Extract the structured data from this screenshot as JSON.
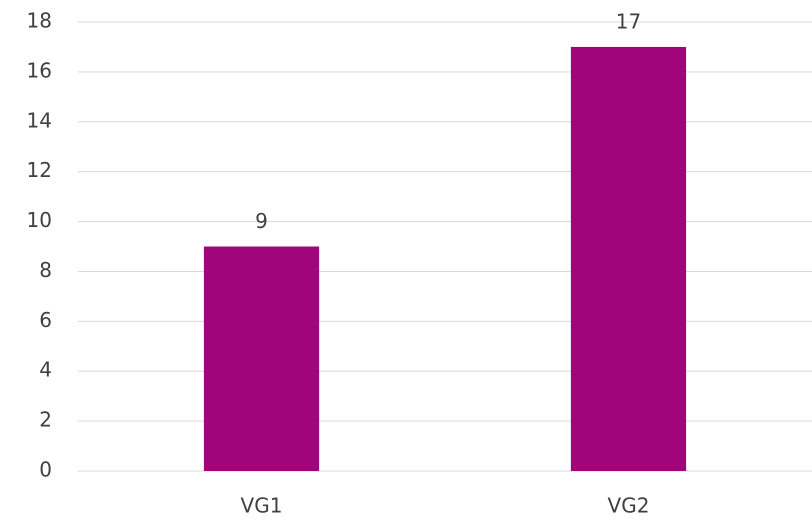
{
  "chart_data": {
    "type": "bar",
    "categories": [
      "VG1",
      "VG2"
    ],
    "values": [
      9,
      17
    ],
    "color": "#a0057a",
    "ylim": [
      0,
      18
    ],
    "yticks": [
      0,
      2,
      4,
      6,
      8,
      10,
      12,
      14,
      16,
      18
    ],
    "grid": true,
    "data_labels": true
  }
}
